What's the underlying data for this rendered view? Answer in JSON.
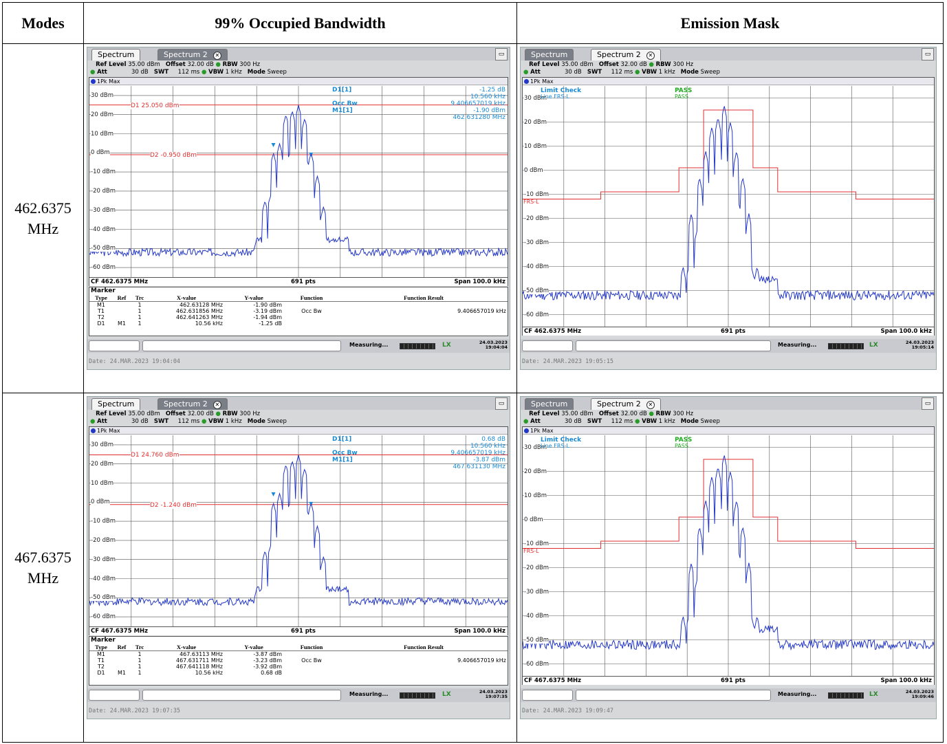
{
  "headers": {
    "modes": "Modes",
    "obw": "99% Occupied Bandwidth",
    "mask": "Emission Mask"
  },
  "colors": {
    "trace": "#2236c8",
    "limit": "#e03030",
    "marker": "#1a8ad4",
    "pass": "#22aa22"
  },
  "rows": [
    {
      "mode_freq": "462.6375",
      "mode_unit": "MHz",
      "obw": {
        "tab1": "Spectrum",
        "tab2": "Spectrum 2",
        "ref_level_label": "Ref Level",
        "ref_level": "35.00 dBm",
        "offset_label": "Offset",
        "offset": "32.00 dB",
        "rbw_label": "RBW",
        "rbw": "300 Hz",
        "att_label": "Att",
        "att": "30 dB",
        "swt_label": "SWT",
        "swt": "112 ms",
        "vbw_label": "VBW",
        "vbw": "1 kHz",
        "mode_label": "Mode",
        "mode": "Sweep",
        "trace_label": "1Pk Max",
        "y_labels": [
          "30 dBm",
          "20 dBm",
          "10 dBm",
          "0 dBm",
          "-10 dBm",
          "-20 dBm",
          "-30 dBm",
          "-40 dBm",
          "-50 dBm",
          "-60 dBm"
        ],
        "d1_line": "D1 25.050 dBm",
        "d2_line": "D2 -0.950 dBm",
        "mk_d1": "D1[1]",
        "mk_d1_v1": "-1.25 dB",
        "mk_d1_v2": "10.560 kHz",
        "mk_occ": "Occ Bw",
        "mk_occ_v": "9.406657019 kHz",
        "mk_m1": "M1[1]",
        "mk_m1_v1": "-1.90 dBm",
        "mk_m1_v2": "462.631280 MHz",
        "cf": "CF 462.6375 MHz",
        "pts": "691 pts",
        "span": "Span 100.0 kHz",
        "marker_title": "Marker",
        "table_headers": [
          "Type",
          "Ref",
          "Trc",
          "X-value",
          "Y-value",
          "Function",
          "Function Result"
        ],
        "table_rows": [
          [
            "M1",
            "",
            "1",
            "462.63128 MHz",
            "-1.90 dBm",
            "",
            ""
          ],
          [
            "T1",
            "",
            "1",
            "462.631856 MHz",
            "-3.19 dBm",
            "Occ Bw",
            "9.406657019 kHz"
          ],
          [
            "T2",
            "",
            "1",
            "462.641263 MHz",
            "-1.94 dBm",
            "",
            ""
          ],
          [
            "D1",
            "M1",
            "1",
            "10.56 kHz",
            "-1.25 dB",
            "",
            ""
          ]
        ],
        "measuring": "Measuring...",
        "stamp_date": "24.03.2023",
        "stamp_time": "19:04:04",
        "date_line": "Date: 24.MAR.2023  19:04:04"
      },
      "mask": {
        "tab1": "Spectrum",
        "tab2": "Spectrum 2",
        "ref_level_label": "Ref Level",
        "ref_level": "35.00 dBm",
        "offset_label": "Offset",
        "offset": "32.00 dB",
        "rbw_label": "RBW",
        "rbw": "300 Hz",
        "att_label": "Att",
        "att": "30 dB",
        "swt_label": "SWT",
        "swt": "112 ms",
        "vbw_label": "VBW",
        "vbw": "1 kHz",
        "mode_label": "Mode",
        "mode": "Sweep",
        "trace_label": "1Pk Max",
        "limit_check": "Limit Check",
        "pass": "PASS",
        "line_label": "Line FRS-L",
        "line_pass": "PASS",
        "frs": "FRS-L",
        "y_labels": [
          "30 dBm",
          "20 dBm",
          "10 dBm",
          "0 dBm",
          "-10 dBm",
          "-20 dBm",
          "-30 dBm",
          "-40 dBm",
          "-50 dBm",
          "-60 dBm"
        ],
        "cf": "CF 462.6375 MHz",
        "pts": "691 pts",
        "span": "Span 100.0 kHz",
        "measuring": "Measuring...",
        "stamp_date": "24.03.2023",
        "stamp_time": "19:05:14",
        "date_line": "Date: 24.MAR.2023  19:05:15"
      }
    },
    {
      "mode_freq": "467.6375",
      "mode_unit": "MHz",
      "obw": {
        "tab1": "Spectrum",
        "tab2": "Spectrum 2",
        "ref_level_label": "Ref Level",
        "ref_level": "35.00 dBm",
        "offset_label": "Offset",
        "offset": "32.00 dB",
        "rbw_label": "RBW",
        "rbw": "300 Hz",
        "att_label": "Att",
        "att": "30 dB",
        "swt_label": "SWT",
        "swt": "112 ms",
        "vbw_label": "VBW",
        "vbw": "1 kHz",
        "mode_label": "Mode",
        "mode": "Sweep",
        "trace_label": "1Pk Max",
        "y_labels": [
          "30 dBm",
          "20 dBm",
          "10 dBm",
          "0 dBm",
          "-10 dBm",
          "-20 dBm",
          "-30 dBm",
          "-40 dBm",
          "-50 dBm",
          "-60 dBm"
        ],
        "d1_line": "D1 24.760 dBm",
        "d2_line": "D2 -1.240 dBm",
        "mk_d1": "D1[1]",
        "mk_d1_v1": "0.68 dB",
        "mk_d1_v2": "10.560 kHz",
        "mk_occ": "Occ Bw",
        "mk_occ_v": "9.406657019 kHz",
        "mk_m1": "M1[1]",
        "mk_m1_v1": "-3.87 dBm",
        "mk_m1_v2": "467.631130 MHz",
        "cf": "CF 467.6375 MHz",
        "pts": "691 pts",
        "span": "Span 100.0 kHz",
        "marker_title": "Marker",
        "table_headers": [
          "Type",
          "Ref",
          "Trc",
          "X-value",
          "Y-value",
          "Function",
          "Function Result"
        ],
        "table_rows": [
          [
            "M1",
            "",
            "1",
            "467.63113 MHz",
            "-3.87 dBm",
            "",
            ""
          ],
          [
            "T1",
            "",
            "1",
            "467.631711 MHz",
            "-3.23 dBm",
            "Occ Bw",
            "9.406657019 kHz"
          ],
          [
            "T2",
            "",
            "1",
            "467.641118 MHz",
            "-3.92 dBm",
            "",
            ""
          ],
          [
            "D1",
            "M1",
            "1",
            "10.56 kHz",
            "0.68 dB",
            "",
            ""
          ]
        ],
        "measuring": "Measuring...",
        "stamp_date": "24.03.2023",
        "stamp_time": "19:07:35",
        "date_line": "Date: 24.MAR.2023  19:07:35"
      },
      "mask": {
        "tab1": "Spectrum",
        "tab2": "Spectrum 2",
        "ref_level_label": "Ref Level",
        "ref_level": "35.00 dBm",
        "offset_label": "Offset",
        "offset": "32.00 dB",
        "rbw_label": "RBW",
        "rbw": "300 Hz",
        "att_label": "Att",
        "att": "30 dB",
        "swt_label": "SWT",
        "swt": "112 ms",
        "vbw_label": "VBW",
        "vbw": "1 kHz",
        "mode_label": "Mode",
        "mode": "Sweep",
        "trace_label": "1Pk Max",
        "limit_check": "Limit Check",
        "pass": "PASS",
        "line_label": "Line FRS-L",
        "line_pass": "PASS",
        "frs": "FRS-L",
        "y_labels": [
          "30 dBm",
          "20 dBm",
          "10 dBm",
          "0 dBm",
          "-10 dBm",
          "-20 dBm",
          "-30 dBm",
          "-40 dBm",
          "-50 dBm",
          "-60 dBm"
        ],
        "cf": "CF 467.6375 MHz",
        "pts": "691 pts",
        "span": "Span 100.0 kHz",
        "measuring": "Measuring...",
        "stamp_date": "24.03.2023",
        "stamp_time": "19:09:46",
        "date_line": "Date: 24.MAR.2023  19:09:47"
      }
    }
  ]
}
